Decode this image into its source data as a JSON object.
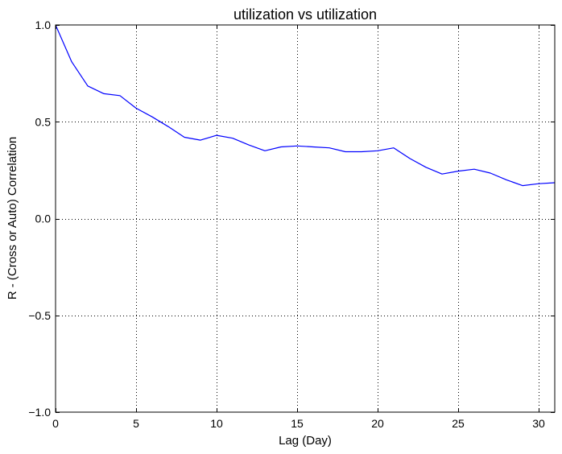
{
  "chart_data": {
    "type": "line",
    "title": "utilization vs utilization",
    "xlabel": "Lag (Day)",
    "ylabel": "R - (Cross or Auto) Correlation",
    "xlim": [
      0,
      31
    ],
    "ylim": [
      -1.0,
      1.0
    ],
    "grid": true,
    "legend": "none",
    "x_ticks": [
      0,
      5,
      10,
      15,
      20,
      25,
      30
    ],
    "x_tick_labels": [
      "0",
      "5",
      "10",
      "15",
      "20",
      "25",
      "30"
    ],
    "y_ticks": [
      -1.0,
      -0.5,
      0.0,
      0.5,
      1.0
    ],
    "y_tick_labels": [
      "−1.0",
      "−0.5",
      "0.0",
      "0.5",
      "1.0"
    ],
    "series": [
      {
        "color": "#0000ff",
        "x": [
          0,
          1,
          2,
          3,
          4,
          5,
          6,
          7,
          8,
          9,
          10,
          11,
          12,
          13,
          14,
          15,
          16,
          17,
          18,
          19,
          20,
          21,
          22,
          23,
          24,
          25,
          26,
          27,
          28,
          29,
          30,
          31
        ],
        "y": [
          1.0,
          0.81,
          0.685,
          0.645,
          0.635,
          0.57,
          0.525,
          0.475,
          0.42,
          0.405,
          0.43,
          0.415,
          0.38,
          0.35,
          0.37,
          0.375,
          0.37,
          0.365,
          0.345,
          0.345,
          0.35,
          0.365,
          0.31,
          0.265,
          0.23,
          0.245,
          0.255,
          0.235,
          0.2,
          0.17,
          0.18,
          0.185
        ]
      }
    ]
  }
}
